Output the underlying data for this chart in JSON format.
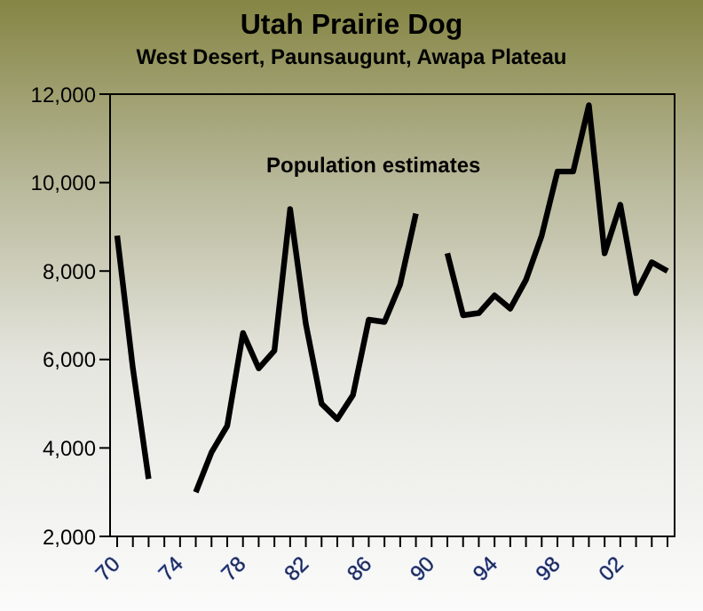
{
  "chart_data": {
    "type": "line",
    "title": "Utah Prairie Dog",
    "subtitle": "West Desert, Paunsaugunt, Awapa Plateau",
    "annotations": [
      "Population estimates"
    ],
    "categories": [
      "70",
      null,
      null,
      null,
      "74",
      null,
      null,
      null,
      "78",
      null,
      null,
      null,
      "82",
      null,
      null,
      null,
      "86",
      null,
      null,
      null,
      "90",
      null,
      null,
      null,
      "94",
      null,
      null,
      null,
      "98",
      null,
      null,
      null,
      "02",
      null,
      null,
      null
    ],
    "series": [
      {
        "color": "#000000",
        "values": [
          8800,
          5800,
          3300,
          null,
          null,
          3000,
          3900,
          4500,
          6600,
          5800,
          6200,
          9400,
          6800,
          5000,
          4650,
          5200,
          6900,
          6850,
          7700,
          9300,
          null,
          8400,
          7000,
          7050,
          7450,
          7150,
          7800,
          8800,
          10250,
          10250,
          11750,
          8400,
          9500,
          7500,
          8200,
          8000
        ]
      }
    ],
    "ylim": [
      2000,
      12000
    ],
    "yticks": [
      {
        "value": 2000,
        "label": "2,000"
      },
      {
        "value": 4000,
        "label": "4,000"
      },
      {
        "value": 6000,
        "label": "6,000"
      },
      {
        "value": 8000,
        "label": "8,000"
      },
      {
        "value": 10000,
        "label": "10,000"
      },
      {
        "value": 12000,
        "label": "12,000"
      }
    ],
    "grid": false,
    "legend": false,
    "marker": "none",
    "line_style": "solid"
  }
}
